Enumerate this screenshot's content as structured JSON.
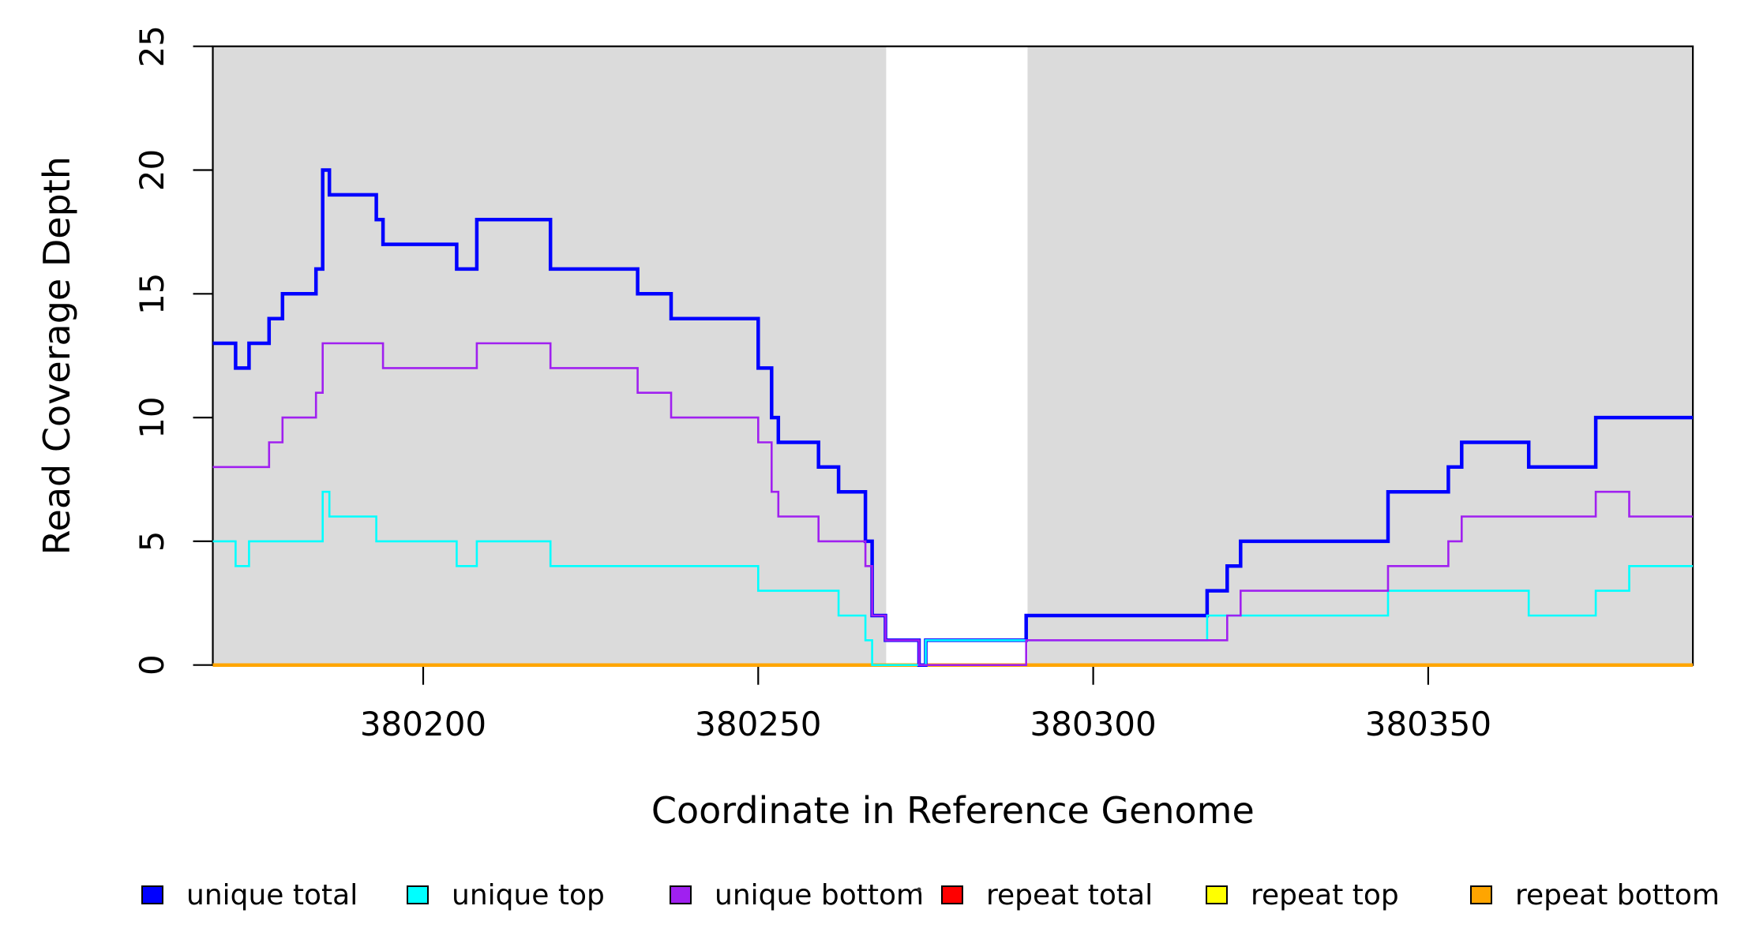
{
  "chart_data": {
    "type": "line",
    "step": true,
    "title": "",
    "xlabel": "Coordinate in Reference Genome",
    "ylabel": "Read Coverage Depth",
    "xlim": [
      380168.6,
      380389.5
    ],
    "ylim": [
      0,
      25
    ],
    "x_ticks": [
      380200,
      380250,
      380300,
      380350
    ],
    "y_ticks": [
      0,
      5,
      10,
      15,
      20,
      25
    ],
    "grid": false,
    "legend_position": "bottom",
    "background": "#FFFFFF",
    "axis_color": "#000000",
    "shaded_color": "#DBDBDB",
    "legend_separator_dot": "·",
    "shaded_regions": [
      {
        "name": "unique-region-1",
        "x0": 380168.6,
        "x1": 380269.1
      },
      {
        "name": "unique-region-2",
        "x0": 380290.2,
        "x1": 380389.5
      }
    ],
    "series": [
      {
        "label": "unique total",
        "color": "#0000FF",
        "line_width": 4.5,
        "steps": [
          [
            380168.6,
            13
          ],
          [
            380172,
            12
          ],
          [
            380174,
            13
          ],
          [
            380177,
            14
          ],
          [
            380179,
            15
          ],
          [
            380184,
            16
          ],
          [
            380185,
            20
          ],
          [
            380186,
            19
          ],
          [
            380193,
            18
          ],
          [
            380194,
            17
          ],
          [
            380205,
            16
          ],
          [
            380208,
            18
          ],
          [
            380219,
            16
          ],
          [
            380232,
            15
          ],
          [
            380237,
            14
          ],
          [
            380250,
            12
          ],
          [
            380252,
            10
          ],
          [
            380253,
            9
          ],
          [
            380259,
            8
          ],
          [
            380262,
            7
          ],
          [
            380266,
            5
          ],
          [
            380267,
            2
          ],
          [
            380269,
            1
          ],
          [
            380274,
            0
          ],
          [
            380275,
            1
          ],
          [
            380290,
            2
          ],
          [
            380317,
            3
          ],
          [
            380320,
            4
          ],
          [
            380322,
            5
          ],
          [
            380344,
            7
          ],
          [
            380353,
            8
          ],
          [
            380355,
            9
          ],
          [
            380365,
            8
          ],
          [
            380375,
            10
          ]
        ]
      },
      {
        "label": "unique top",
        "color": "#00FFFF",
        "line_width": 2.6,
        "steps": [
          [
            380168.6,
            5
          ],
          [
            380172,
            4
          ],
          [
            380174,
            5
          ],
          [
            380185,
            7
          ],
          [
            380186,
            6
          ],
          [
            380193,
            5
          ],
          [
            380205,
            4
          ],
          [
            380208,
            5
          ],
          [
            380219,
            4
          ],
          [
            380250,
            3
          ],
          [
            380262,
            2
          ],
          [
            380266,
            1
          ],
          [
            380267,
            0
          ],
          [
            380275,
            1
          ],
          [
            380317,
            2
          ],
          [
            380344,
            3
          ],
          [
            380365,
            2
          ],
          [
            380375,
            3
          ],
          [
            380380,
            4
          ]
        ]
      },
      {
        "label": "unique bottom",
        "color": "#A020F0",
        "line_width": 2.6,
        "steps": [
          [
            380168.6,
            8
          ],
          [
            380177,
            9
          ],
          [
            380179,
            10
          ],
          [
            380184,
            11
          ],
          [
            380185,
            13
          ],
          [
            380194,
            12
          ],
          [
            380208,
            13
          ],
          [
            380219,
            12
          ],
          [
            380232,
            11
          ],
          [
            380237,
            10
          ],
          [
            380250,
            9
          ],
          [
            380252,
            7
          ],
          [
            380253,
            6
          ],
          [
            380259,
            5
          ],
          [
            380266,
            4
          ],
          [
            380267,
            2
          ],
          [
            380269,
            1
          ],
          [
            380274,
            0
          ],
          [
            380290,
            1
          ],
          [
            380320,
            2
          ],
          [
            380322,
            3
          ],
          [
            380344,
            4
          ],
          [
            380353,
            5
          ],
          [
            380355,
            6
          ],
          [
            380375,
            7
          ],
          [
            380380,
            6
          ]
        ]
      },
      {
        "label": "repeat total",
        "color": "#FF0000",
        "line_width": 2.6,
        "steps": [
          [
            380168.6,
            0
          ]
        ]
      },
      {
        "label": "repeat top",
        "color": "#FFFF00",
        "line_width": 2.6,
        "steps": [
          [
            380168.6,
            0
          ]
        ]
      },
      {
        "label": "repeat bottom",
        "color": "#FFA500",
        "line_width": 4.5,
        "steps": [
          [
            380168.6,
            0
          ]
        ]
      }
    ]
  }
}
